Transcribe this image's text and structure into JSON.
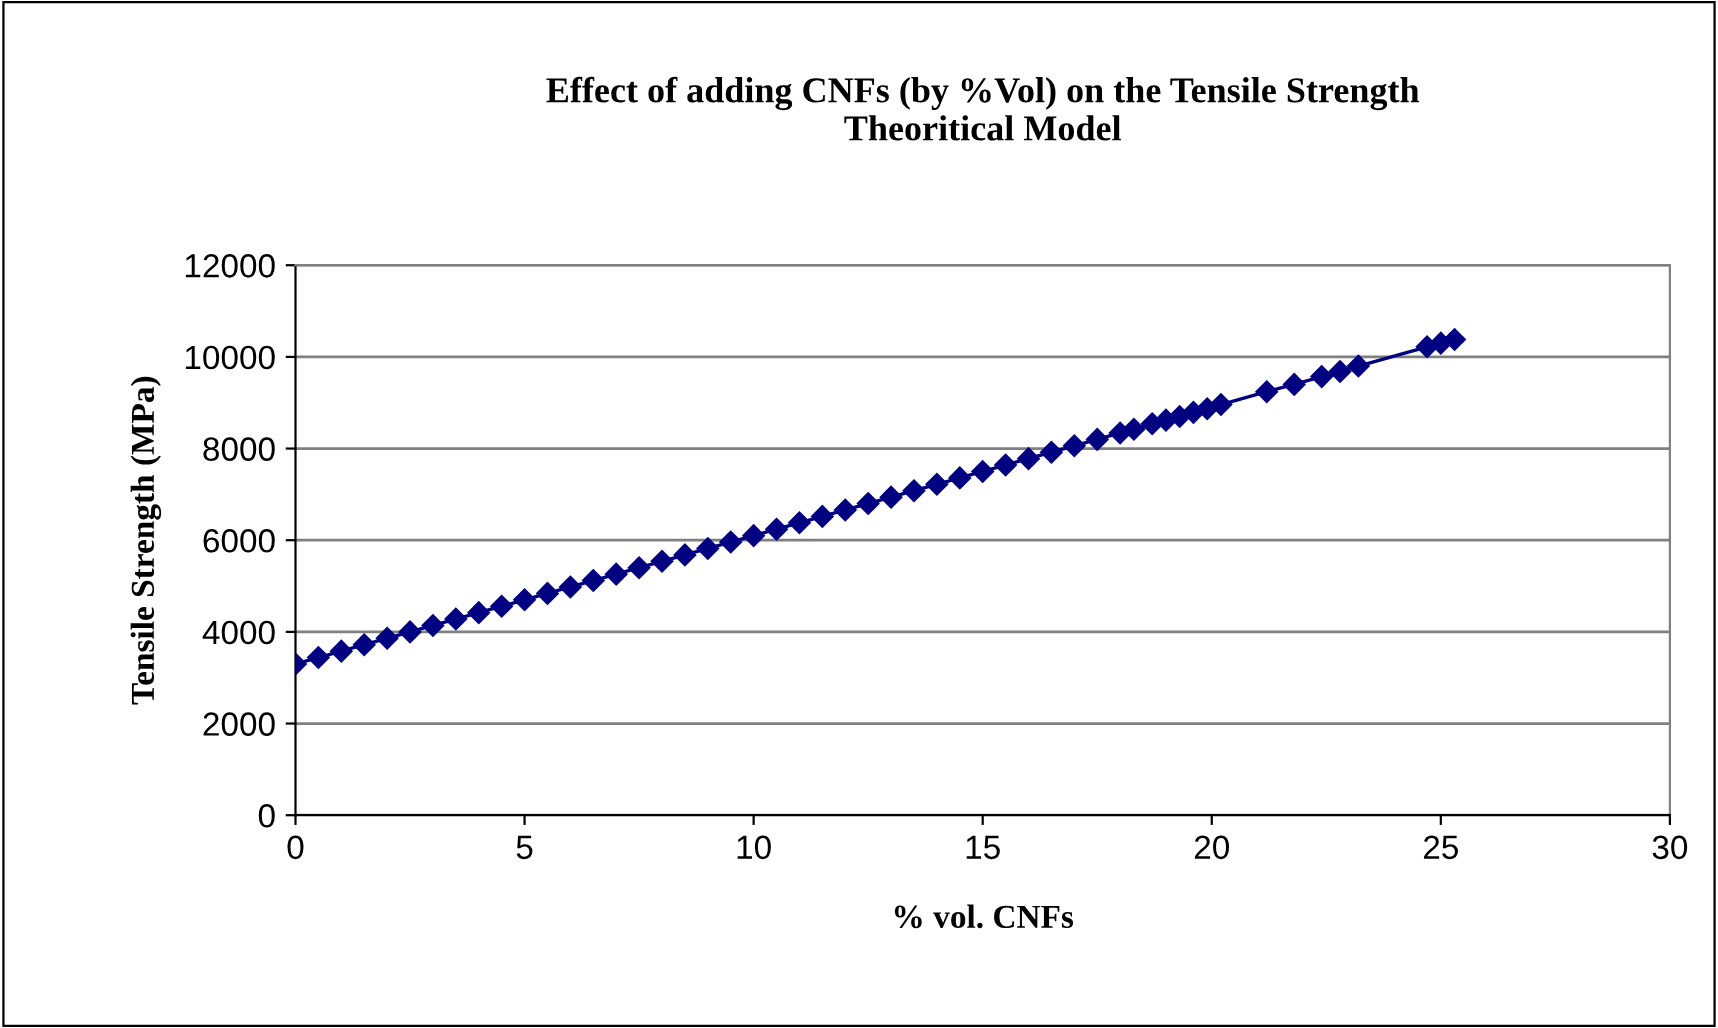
{
  "chart_data": {
    "type": "line",
    "title": "Effect of adding CNFs (by %Vol) on the Tensile Strength\nTheoritical Model",
    "xlabel": "% vol. CNFs",
    "ylabel": "Tensile Strength (MPa)",
    "series": [
      {
        "color": "#000080",
        "x": [
          0,
          0.5,
          1,
          1.5,
          2,
          2.5,
          3,
          3.5,
          4,
          4.5,
          5,
          5.5,
          6,
          6.5,
          7,
          7.5,
          8,
          8.5,
          9,
          9.5,
          10,
          10.5,
          11,
          11.5,
          12,
          12.5,
          13,
          13.5,
          14,
          14.5,
          15,
          15.5,
          16,
          16.5,
          17,
          17.5,
          18,
          18.3,
          18.7,
          19,
          19.3,
          19.6,
          19.9,
          20.2,
          21.2,
          21.8,
          22.4,
          22.8,
          23.2,
          24.7,
          25.0,
          25.3
        ],
        "values": [
          3300,
          3440,
          3580,
          3720,
          3860,
          4000,
          4140,
          4280,
          4420,
          4560,
          4700,
          4840,
          4980,
          5120,
          5260,
          5400,
          5540,
          5680,
          5820,
          5960,
          6100,
          6240,
          6380,
          6520,
          6660,
          6800,
          6940,
          7080,
          7220,
          7360,
          7500,
          7640,
          7780,
          7920,
          8060,
          8200,
          8340,
          8420,
          8540,
          8620,
          8700,
          8790,
          8870,
          8960,
          9240,
          9400,
          9570,
          9680,
          9800,
          10220,
          10300,
          10380
        ]
      }
    ],
    "xlim": [
      0,
      30
    ],
    "xticks": [
      0,
      5,
      10,
      15,
      20,
      25,
      30
    ],
    "ylim": [
      0,
      12000
    ],
    "yticks": [
      0,
      2000,
      4000,
      6000,
      8000,
      10000,
      12000
    ],
    "grid": "y",
    "marker": "diamond",
    "line_style": "solid"
  }
}
